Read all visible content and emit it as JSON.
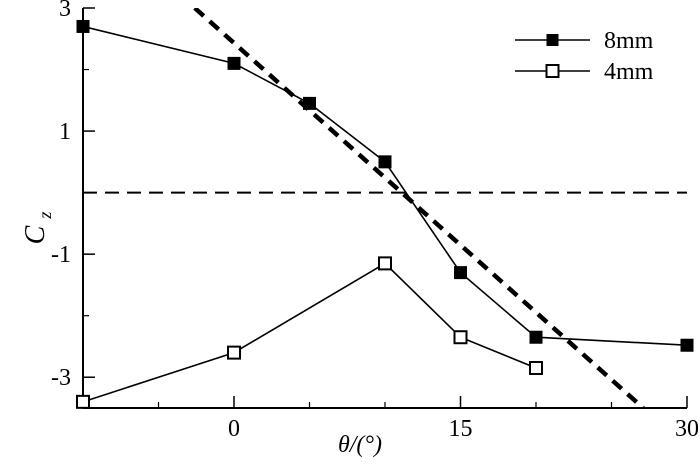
{
  "chart_data": {
    "type": "line",
    "title": "",
    "xlabel": "θ/(°)",
    "ylabel_main": "C",
    "ylabel_sub": "z",
    "xlim": [
      -10,
      30
    ],
    "ylim": [
      -3.5,
      3
    ],
    "xticks": [
      0,
      15,
      30
    ],
    "xtick_labels": [
      "0",
      "15",
      "30"
    ],
    "xticks_minor": [
      -5,
      5,
      10,
      20,
      25
    ],
    "yticks": [
      3,
      1,
      -1,
      -3
    ],
    "ytick_labels": [
      "3",
      "1",
      "-1",
      "-3"
    ],
    "yticks_minor": [
      2,
      0,
      -2
    ],
    "grid": false,
    "legend_position": "top-right",
    "series": [
      {
        "name": "8mm",
        "marker": "filled-square",
        "x": [
          -10,
          0,
          5,
          10,
          15,
          20,
          30
        ],
        "y": [
          2.7,
          2.1,
          1.45,
          0.5,
          -1.3,
          -2.35,
          -2.48
        ]
      },
      {
        "name": "4mm",
        "marker": "open-square",
        "x": [
          -10,
          0,
          10,
          15,
          20
        ],
        "y": [
          -3.4,
          -2.6,
          -1.15,
          -2.35,
          -2.85
        ]
      }
    ],
    "reference_lines": [
      {
        "name": "zero-line",
        "style": "dashed",
        "x": [
          -10,
          30
        ],
        "y": [
          0,
          0
        ]
      },
      {
        "name": "trend-line",
        "style": "bold-dashed",
        "x": [
          -2.6,
          27.1
        ],
        "y": [
          3.0,
          -3.5
        ]
      }
    ]
  },
  "colors": {
    "axis": "#000000",
    "series": "#000000",
    "marker_fill_open": "#ffffff",
    "background": "#ffffff"
  }
}
